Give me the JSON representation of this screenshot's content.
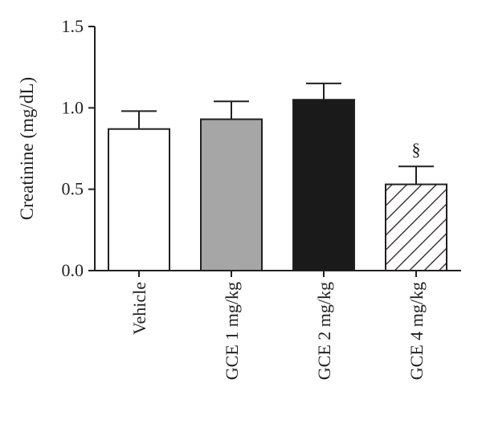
{
  "chart_data": {
    "type": "bar",
    "ylabel": "Creatinine (mg/dL)",
    "xlabel": "",
    "ylim": [
      0,
      1.5
    ],
    "yticks": [
      "0.0",
      "0.5",
      "1.0",
      "1.5"
    ],
    "categories": [
      "Vehicle",
      "GCE 1 mg/kg",
      "GCE 2 mg/kg",
      "GCE 4 mg/kg"
    ],
    "values": [
      0.87,
      0.93,
      1.05,
      0.53
    ],
    "errors": [
      0.11,
      0.11,
      0.1,
      0.11
    ],
    "bar_fills": [
      "#ffffff",
      "#a6a6a6",
      "#1a1a1a",
      "hatched"
    ],
    "annotations": [
      {
        "category_index": 3,
        "text": "§"
      }
    ],
    "grid": false,
    "legend": "none"
  }
}
